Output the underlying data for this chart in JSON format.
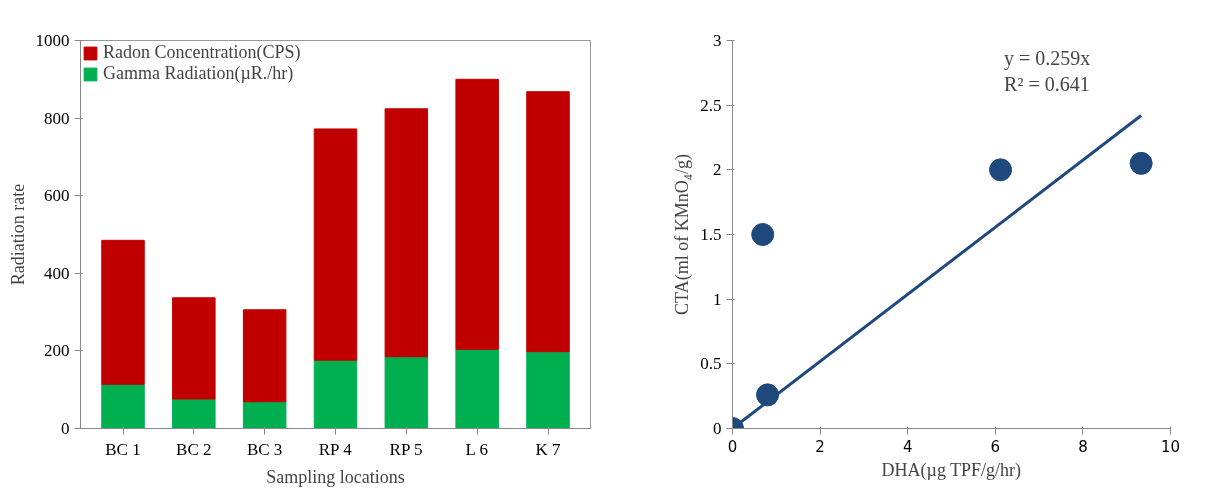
{
  "chart_data": [
    {
      "type": "bar",
      "stacked": true,
      "xlabel": "Sampling locations",
      "ylabel": "Radiation rate",
      "categories": [
        "BC 1",
        "BC 2",
        "BC 3",
        "RP 4",
        "RP 5",
        "L 6",
        "K 7"
      ],
      "series": [
        {
          "name": "Gamma Radiation(µR./hr)",
          "color": "#00b050",
          "values": [
            114,
            76,
            69,
            176,
            185,
            204,
            198
          ]
        },
        {
          "name": "Radon Concentration(CPS)",
          "color": "#c00000",
          "values": [
            371,
            261,
            237,
            596,
            639,
            696,
            670
          ]
        }
      ],
      "ylim": [
        0,
        1000
      ],
      "yticks": [
        0,
        200,
        400,
        600,
        800,
        1000
      ],
      "grid": false,
      "legend": "top"
    },
    {
      "type": "scatter",
      "xlabel": "DHA(µg TPF/g/hr)",
      "ylabel": "CTA(ml of KMnO₄/g)",
      "x": [
        0,
        0.69,
        0.8,
        6.12,
        9.33
      ],
      "series": [
        {
          "color": "#1f497d",
          "marker": "circle",
          "values": [
            0,
            1.5,
            0.26,
            2.0,
            2.05
          ]
        },
        {
          "type": "line",
          "color": "#1f497d",
          "x": [
            0,
            9.33
          ],
          "values": [
            0,
            2.42
          ]
        }
      ],
      "xlim": [
        0,
        10
      ],
      "xticks": [
        0,
        2,
        4,
        6,
        8,
        10
      ],
      "ylim": [
        0,
        3
      ],
      "yticks": [
        0,
        0.5,
        1,
        1.5,
        2,
        2.5,
        3
      ],
      "grid": false,
      "legend": false,
      "annotations": [
        "y = 0.259x",
        "R² = 0.641"
      ]
    }
  ]
}
